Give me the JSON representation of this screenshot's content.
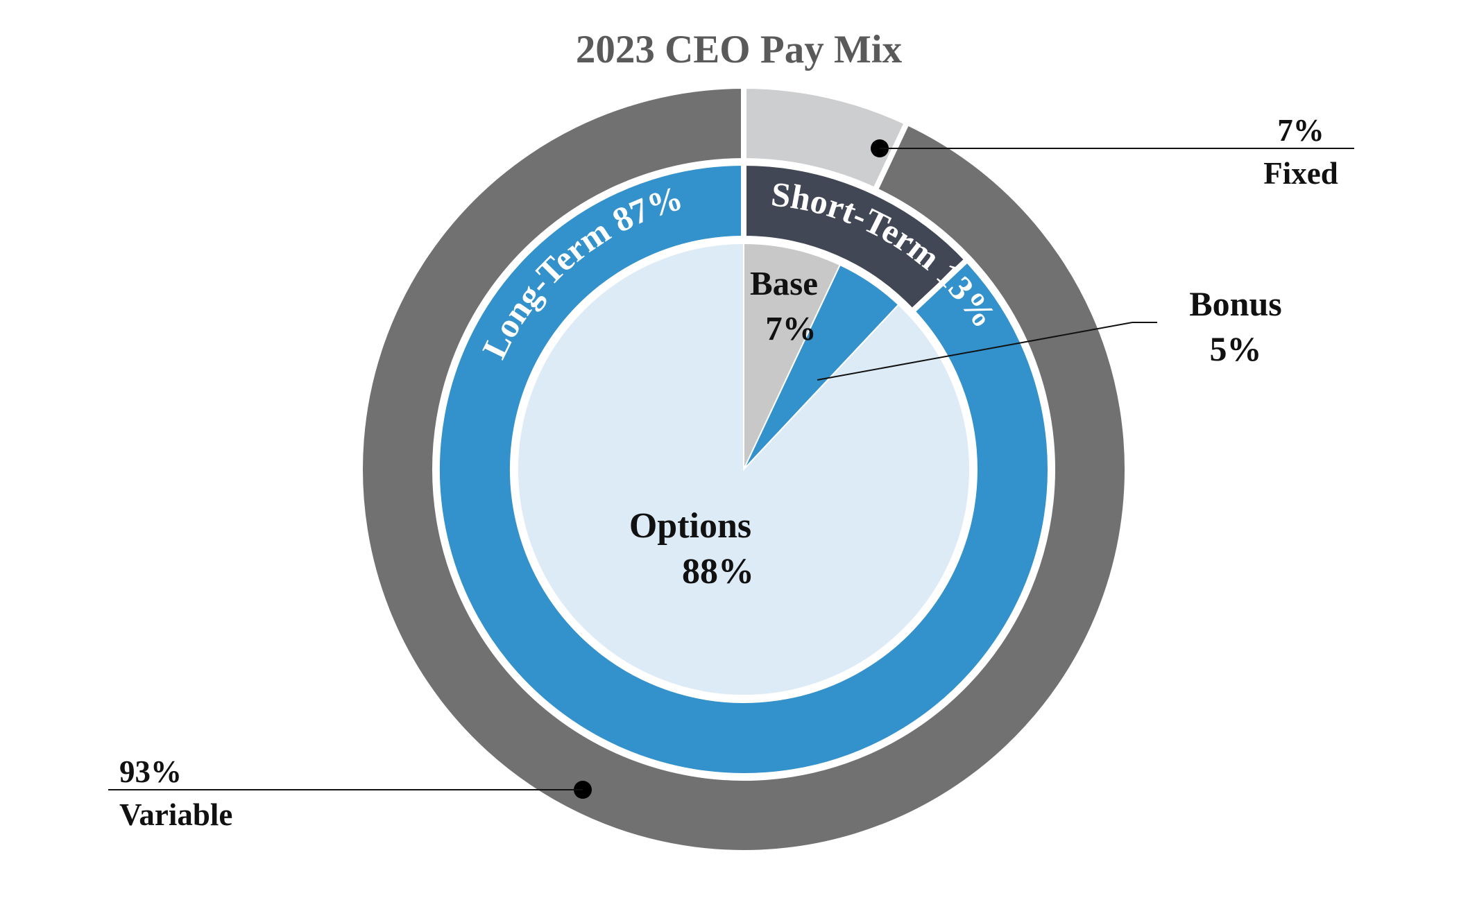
{
  "colors": {
    "background": "#ffffff",
    "fixed": "#cdcecf",
    "variable": "#717171",
    "short_term": "#414754",
    "long_term": "#3391cb",
    "base": "#c8c8c8",
    "bonus": "#3391cb",
    "options": "#dcebf6",
    "title": "#5a5a5a",
    "label_dark": "#111111",
    "label_light": "#ffffff",
    "separator": "#ffffff"
  },
  "chart_data": {
    "type": "pie",
    "title": "2023 CEO Pay Mix",
    "rings": [
      {
        "ring": "outer",
        "slices": [
          {
            "name": "Fixed",
            "value": 7,
            "label": "7%"
          },
          {
            "name": "Variable",
            "value": 93,
            "label": "93%"
          }
        ]
      },
      {
        "ring": "middle",
        "slices": [
          {
            "name": "Short-Term",
            "value": 13,
            "label": "13%"
          },
          {
            "name": "Long-Term",
            "value": 87,
            "label": "87%"
          }
        ]
      },
      {
        "ring": "inner",
        "slices": [
          {
            "name": "Base",
            "value": 7,
            "label": "7%"
          },
          {
            "name": "Bonus",
            "value": 5,
            "label": "5%"
          },
          {
            "name": "Options",
            "value": 88,
            "label": "88%"
          }
        ]
      }
    ],
    "labels": {
      "fixed_pct": "7%",
      "fixed_name": "Fixed",
      "variable_pct": "93%",
      "variable_name": "Variable",
      "short_term_arc": "Short-Term 13%",
      "long_term_arc": "Long-Term 87%",
      "base_name": "Base",
      "base_pct": "7%",
      "bonus_name": "Bonus",
      "bonus_pct": "5%",
      "options_name": "Options",
      "options_pct": "88%"
    }
  }
}
